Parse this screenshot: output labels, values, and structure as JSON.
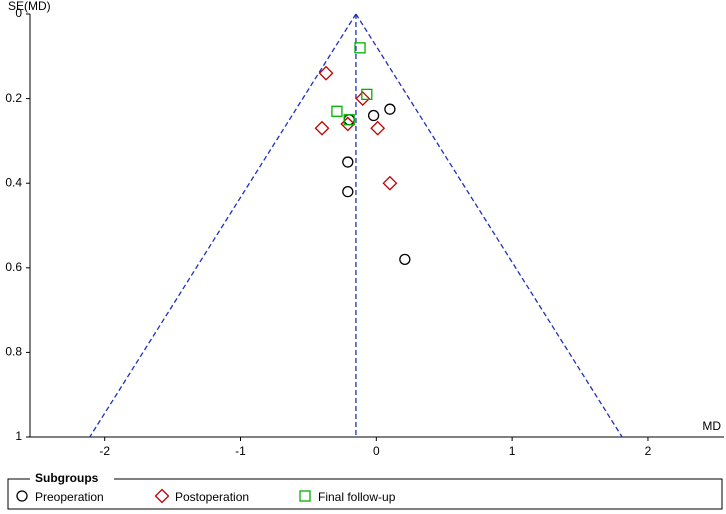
{
  "chart_data": {
    "type": "funnel",
    "y_label": "SE(MD)",
    "x_label": "MD",
    "xlim": [
      -2.55,
      2.56
    ],
    "xticks": [
      -2,
      -1,
      0,
      1,
      2
    ],
    "ylim": [
      0,
      1
    ],
    "yticks": [
      0,
      0.2,
      0.4,
      0.6,
      0.8,
      1
    ],
    "y_inverted": true,
    "pooled_md": -0.15,
    "funnel_color": "#1f2fbf",
    "legend_title": "Subgroups",
    "series": [
      {
        "name": "Preoperation",
        "color": "#000000",
        "marker": "circle",
        "x": [
          0.1,
          -0.02,
          -0.2,
          -0.21,
          -0.21,
          0.21
        ],
        "values": [
          0.225,
          0.24,
          0.25,
          0.35,
          0.42,
          0.58
        ]
      },
      {
        "name": "Postoperation",
        "color": "#c00000",
        "marker": "diamond",
        "x": [
          -0.37,
          -0.1,
          -0.4,
          -0.21,
          0.01,
          0.1
        ],
        "values": [
          0.14,
          0.2,
          0.27,
          0.26,
          0.27,
          0.4
        ]
      },
      {
        "name": "Final follow-up",
        "color": "#00b000",
        "marker": "square",
        "x": [
          -0.12,
          -0.07,
          -0.29,
          -0.2
        ],
        "values": [
          0.08,
          0.19,
          0.23,
          0.25
        ]
      }
    ]
  }
}
